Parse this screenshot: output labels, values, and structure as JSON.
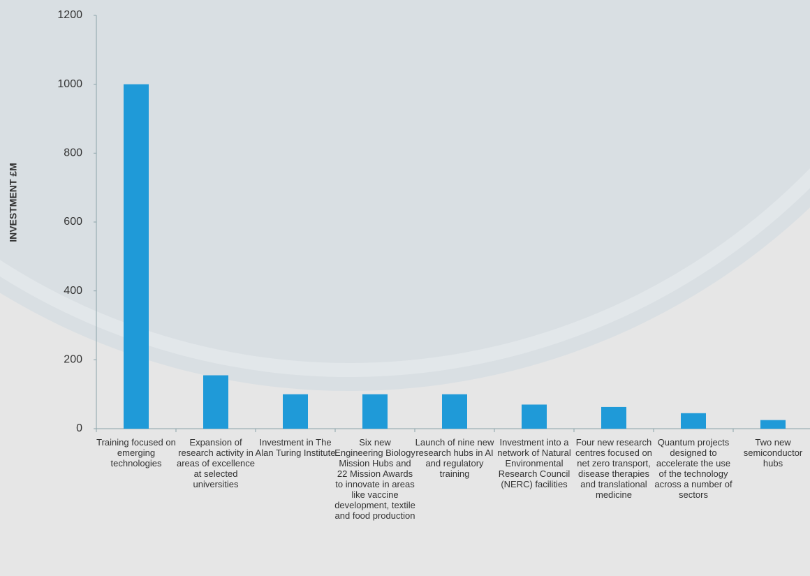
{
  "chart_data": {
    "type": "bar",
    "y_label": "INVESTMENT £M",
    "categories": [
      "Training focused on emerging technologies",
      "Expansion of research activity in areas of excellence at selected universities",
      "Investment in The Alan Turing Institute",
      "Six new Engineering Biology Mission Hubs and 22 Mission Awards to innovate in areas like vaccine development, textile and food production",
      "Launch of nine new research hubs in AI and regulatory training",
      "Investment into a network of Natural Environmental Research Council (NERC) facilities",
      "Four new research centres focused on net zero transport, disease therapies and translational medicine",
      "Quantum projects designed to accelerate the use of the technology across a number of sectors",
      "Two new semiconductor hubs"
    ],
    "values": [
      1000,
      155,
      100,
      100,
      100,
      70,
      63,
      45,
      25
    ],
    "color": "#1f9ad8",
    "ylim": [
      0,
      1200
    ],
    "yticks": [
      0,
      200,
      400,
      600,
      800,
      1000,
      1200
    ],
    "grid": false
  }
}
